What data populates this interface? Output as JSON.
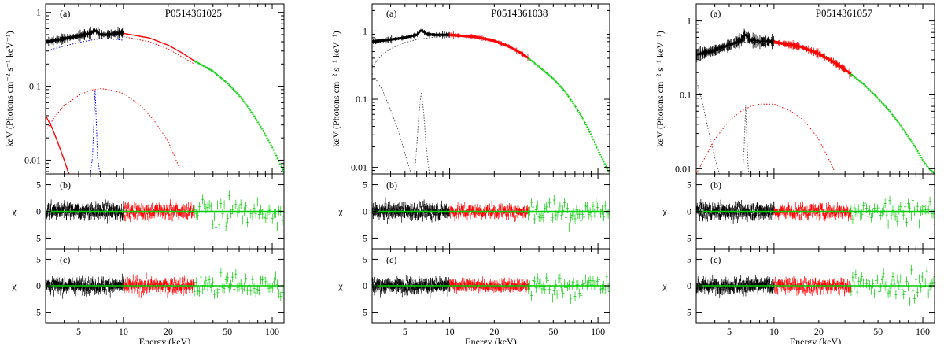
{
  "figure": {
    "panel_tags": {
      "a": "(a)",
      "b": "(b)",
      "c": "(c)"
    },
    "ylabel_top": "keV (Photons cm⁻² s⁻¹ keV⁻¹)",
    "ylabel_resid": "χ",
    "xlabel": "Energy (keV)"
  },
  "chart_data": [
    {
      "type": "line",
      "title": "P0514361025",
      "xlabel": "Energy (keV)",
      "ylabel": "keV (Photons cm⁻² s⁻¹ keV⁻¹)",
      "xscale": "log",
      "yscale": "log",
      "xlim": [
        3,
        120
      ],
      "ylim": [
        0.0065,
        1.3
      ],
      "xticks": [
        5,
        10,
        20,
        50,
        100
      ],
      "yticks": [
        {
          "v": 1,
          "t": "1"
        },
        {
          "v": 0.1,
          "t": "0.1"
        },
        {
          "v": 0.01,
          "t": "0.01"
        }
      ],
      "resid_ylim": [
        -7,
        7
      ],
      "resid_yticks": [
        5,
        0,
        -5
      ],
      "series": [
        {
          "name": "data-low",
          "color": "#000000",
          "style": "data",
          "noise": 0.07,
          "x": [
            3,
            3.5,
            4,
            5,
            6,
            6.4,
            6.6,
            7,
            8,
            9,
            10
          ],
          "y": [
            0.4,
            0.42,
            0.44,
            0.48,
            0.52,
            0.57,
            0.55,
            0.5,
            0.5,
            0.52,
            0.53
          ]
        },
        {
          "name": "data-mid",
          "color": "#ff0000",
          "style": "solid",
          "x": [
            10,
            15,
            20,
            25,
            30
          ],
          "y": [
            0.52,
            0.45,
            0.36,
            0.28,
            0.22
          ]
        },
        {
          "name": "data-high",
          "color": "#00cc00",
          "style": "data",
          "x": [
            30,
            40,
            50,
            60,
            70,
            80,
            90,
            100,
            110,
            120
          ],
          "y": [
            0.22,
            0.16,
            0.11,
            0.075,
            0.05,
            0.033,
            0.022,
            0.015,
            0.01,
            0.0068
          ]
        },
        {
          "name": "continuum",
          "color": "#0000ff",
          "style": "dotted",
          "x": [
            3,
            4,
            5,
            6,
            7,
            8,
            9,
            10
          ],
          "y": [
            0.3,
            0.35,
            0.39,
            0.42,
            0.44,
            0.44,
            0.43,
            0.42
          ]
        },
        {
          "name": "reflection",
          "color": "#ff0000",
          "style": "dotted",
          "x": [
            3,
            3.5,
            4,
            5,
            6,
            7,
            8,
            10,
            13,
            16,
            20,
            24
          ],
          "y": [
            0.025,
            0.04,
            0.055,
            0.075,
            0.088,
            0.093,
            0.09,
            0.08,
            0.055,
            0.035,
            0.018,
            0.0075
          ]
        },
        {
          "name": "soft-component",
          "color": "#ff0000",
          "style": "solid",
          "x": [
            3,
            3.3,
            3.6,
            4,
            4.3
          ],
          "y": [
            0.04,
            0.028,
            0.018,
            0.01,
            0.0065
          ]
        },
        {
          "name": "fe-line",
          "color": "#0000ff",
          "style": "dotted",
          "x": [
            6.0,
            6.2,
            6.35,
            6.45,
            6.55,
            6.7,
            6.95
          ],
          "y": [
            0.0065,
            0.011,
            0.04,
            0.09,
            0.04,
            0.011,
            0.0065
          ]
        },
        {
          "name": "model-mid",
          "color": "#ff0000",
          "style": "dotted",
          "x": [
            10,
            15,
            20,
            30
          ],
          "y": [
            0.47,
            0.4,
            0.32,
            0.2
          ]
        }
      ],
      "residuals": [
        {
          "spread_b": 1.5,
          "spread_c": 1.4
        },
        {
          "spread_b": 1.5,
          "spread_c": 1.4
        },
        {
          "spread_b": 3,
          "spread_c": 2.8
        }
      ]
    },
    {
      "type": "line",
      "title": "P0514361038",
      "xlabel": "Energy (keV)",
      "ylabel": "keV (Photons cm⁻² s⁻¹ keV⁻¹)",
      "xscale": "log",
      "yscale": "log",
      "xlim": [
        3,
        120
      ],
      "ylim": [
        0.008,
        2.5
      ],
      "xticks": [
        5,
        10,
        20,
        50,
        100
      ],
      "yticks": [
        {
          "v": 1,
          "t": "1"
        },
        {
          "v": 0.1,
          "t": "0.1"
        },
        {
          "v": 0.01,
          "t": "0.01"
        }
      ],
      "resid_ylim": [
        -7,
        7
      ],
      "resid_yticks": [
        5,
        0,
        -5
      ],
      "series": [
        {
          "name": "data-low",
          "color": "#000000",
          "style": "data",
          "noise": 0.04,
          "x": [
            3,
            4,
            5,
            6,
            6.4,
            6.6,
            7,
            8,
            10
          ],
          "y": [
            0.7,
            0.75,
            0.8,
            0.88,
            1.02,
            1.0,
            0.9,
            0.88,
            0.88
          ]
        },
        {
          "name": "data-mid",
          "color": "#ff0000",
          "style": "data",
          "noise": 0.04,
          "x": [
            10,
            15,
            20,
            23,
            25,
            30,
            34
          ],
          "y": [
            0.88,
            0.82,
            0.72,
            0.64,
            0.6,
            0.48,
            0.4
          ]
        },
        {
          "name": "data-high",
          "color": "#00cc00",
          "style": "data",
          "x": [
            34,
            40,
            50,
            60,
            70,
            80,
            90,
            100,
            110,
            120
          ],
          "y": [
            0.4,
            0.3,
            0.2,
            0.13,
            0.08,
            0.05,
            0.03,
            0.018,
            0.012,
            0.008
          ]
        },
        {
          "name": "continuum",
          "color": "#555555",
          "style": "dotted",
          "x": [
            3,
            3.5,
            4,
            5,
            6,
            8,
            10
          ],
          "y": [
            0.3,
            0.45,
            0.55,
            0.68,
            0.75,
            0.82,
            0.85
          ]
        },
        {
          "name": "soft-component",
          "color": "#555555",
          "style": "dotted",
          "x": [
            3,
            3.5,
            4,
            4.5,
            5,
            5.5
          ],
          "y": [
            0.24,
            0.14,
            0.07,
            0.035,
            0.016,
            0.008
          ]
        },
        {
          "name": "fe-line",
          "color": "#555555",
          "style": "dotted",
          "x": [
            5.8,
            6.0,
            6.2,
            6.45,
            6.7,
            6.95,
            7.3
          ],
          "y": [
            0.008,
            0.02,
            0.06,
            0.13,
            0.06,
            0.02,
            0.008
          ]
        }
      ],
      "residuals": [
        {
          "spread_b": 1.5,
          "spread_c": 1.4
        },
        {
          "spread_b": 1.2,
          "spread_c": 1.0
        },
        {
          "spread_b": 3,
          "spread_c": 2.5
        }
      ]
    },
    {
      "type": "line",
      "title": "P0514361057",
      "xlabel": "Energy (keV)",
      "ylabel": "keV (Photons cm⁻² s⁻¹ keV⁻¹)",
      "xscale": "log",
      "yscale": "log",
      "xlim": [
        3,
        120
      ],
      "ylim": [
        0.0085,
        1.7
      ],
      "xticks": [
        5,
        10,
        20,
        50,
        100
      ],
      "yticks": [
        {
          "v": 1,
          "t": "1"
        },
        {
          "v": 0.1,
          "t": "0.1"
        },
        {
          "v": 0.01,
          "t": "0.01"
        }
      ],
      "resid_ylim": [
        -7,
        7
      ],
      "resid_yticks": [
        5,
        0,
        -5
      ],
      "series": [
        {
          "name": "data-low",
          "color": "#000000",
          "style": "data",
          "noise": 0.1,
          "x": [
            3,
            4,
            5,
            6,
            6.4,
            6.6,
            7,
            8,
            10
          ],
          "y": [
            0.35,
            0.4,
            0.47,
            0.55,
            0.65,
            0.62,
            0.55,
            0.52,
            0.53
          ]
        },
        {
          "name": "data-mid",
          "color": "#ff0000",
          "style": "data",
          "noise": 0.06,
          "x": [
            10,
            15,
            20,
            25,
            30,
            33
          ],
          "y": [
            0.52,
            0.45,
            0.36,
            0.28,
            0.22,
            0.19
          ]
        },
        {
          "name": "data-high",
          "color": "#00cc00",
          "style": "data",
          "x": [
            33,
            40,
            50,
            60,
            70,
            80,
            90,
            100,
            110,
            120
          ],
          "y": [
            0.19,
            0.14,
            0.09,
            0.06,
            0.04,
            0.027,
            0.019,
            0.013,
            0.01,
            0.0087
          ]
        },
        {
          "name": "continuum",
          "color": "#555555",
          "style": "dotted",
          "x": [
            3,
            3.5,
            4,
            5,
            6,
            7,
            8,
            10
          ],
          "y": [
            0.28,
            0.33,
            0.38,
            0.45,
            0.5,
            0.53,
            0.52,
            0.5
          ]
        },
        {
          "name": "soft-component",
          "color": "#555555",
          "style": "dotted",
          "x": [
            3,
            3.3,
            3.6,
            4,
            4.3
          ],
          "y": [
            0.16,
            0.08,
            0.035,
            0.014,
            0.0085
          ]
        },
        {
          "name": "reflection",
          "color": "#ff0000",
          "style": "dotted",
          "x": [
            3,
            4,
            5,
            6,
            7,
            8,
            10,
            13,
            16,
            20,
            24,
            26
          ],
          "y": [
            0.0085,
            0.025,
            0.045,
            0.06,
            0.07,
            0.075,
            0.075,
            0.06,
            0.045,
            0.025,
            0.012,
            0.0085
          ]
        },
        {
          "name": "fe-line",
          "color": "#555555",
          "style": "dotted",
          "x": [
            6.15,
            6.3,
            6.45,
            6.6,
            6.75
          ],
          "y": [
            0.0085,
            0.02,
            0.075,
            0.02,
            0.0085
          ]
        }
      ],
      "residuals": [
        {
          "spread_b": 1.5,
          "spread_c": 1.4
        },
        {
          "spread_b": 1.5,
          "spread_c": 1.4
        },
        {
          "spread_b": 3,
          "spread_c": 2.8
        }
      ]
    }
  ]
}
